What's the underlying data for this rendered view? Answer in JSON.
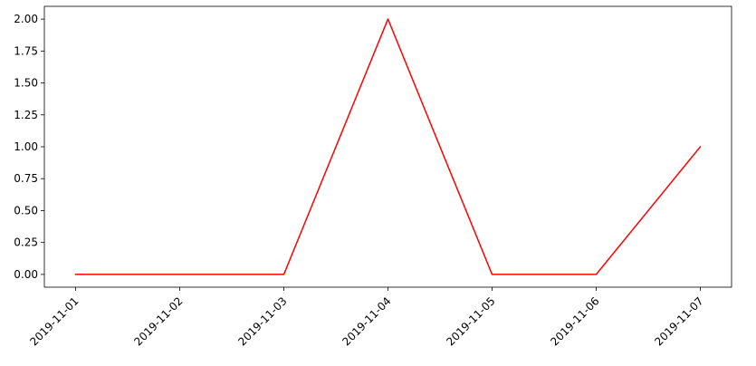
{
  "chart_data": {
    "type": "line",
    "x": [
      "2019-11-01",
      "2019-11-02",
      "2019-11-03",
      "2019-11-04",
      "2019-11-05",
      "2019-11-06",
      "2019-11-07"
    ],
    "series": [
      {
        "values": [
          0,
          0,
          0,
          2,
          0,
          0,
          1
        ],
        "color": "#ff0000"
      }
    ],
    "yticks": [
      "0.00",
      "0.25",
      "0.50",
      "0.75",
      "1.00",
      "1.25",
      "1.50",
      "1.75",
      "2.00"
    ],
    "ylim": [
      -0.1,
      2.1
    ],
    "grid": false,
    "legend": false,
    "xlabel": "",
    "ylabel": "",
    "title": ""
  }
}
